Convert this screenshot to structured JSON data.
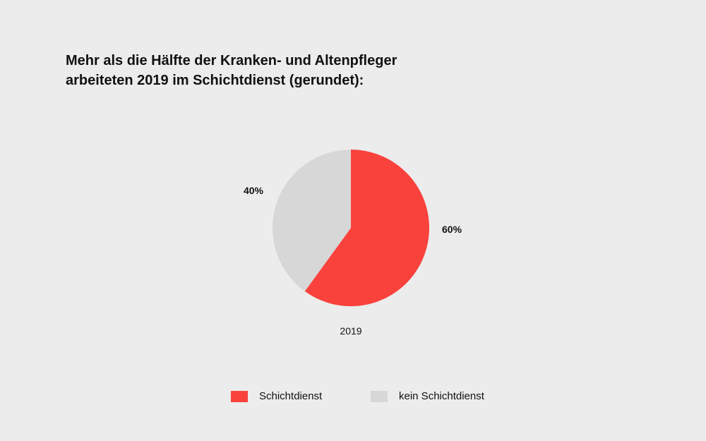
{
  "title": {
    "line1": "Mehr als die Hälfte der Kranken- und Altenpfleger",
    "line2": "arbeiteten 2019 im Schichtdienst (gerundet):"
  },
  "colors": {
    "background": "#ececec",
    "schichtdienst": "#fa423d",
    "kein_schichtdienst": "#d7d7d7"
  },
  "chart_data": {
    "type": "pie",
    "title": "Mehr als die Hälfte der Kranken- und Altenpfleger arbeiteten 2019 im Schichtdienst (gerundet):",
    "category": "2019",
    "slices": [
      {
        "label": "Schichtdienst",
        "value": 60,
        "value_label": "60%",
        "color": "#fa423d"
      },
      {
        "label": "kein Schichtdienst",
        "value": 40,
        "value_label": "40%",
        "color": "#d7d7d7"
      }
    ],
    "legend_position": "bottom"
  },
  "legend": {
    "items": [
      {
        "label": "Schichtdienst",
        "color": "#fa423d"
      },
      {
        "label": "kein Schichtdienst",
        "color": "#d7d7d7"
      }
    ]
  }
}
